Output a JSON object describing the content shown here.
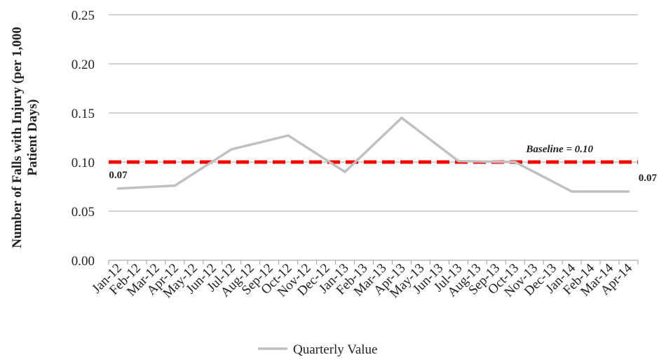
{
  "chart_data": {
    "type": "line",
    "title": "",
    "xlabel": "",
    "ylabel_lines": [
      "Number of Falls with Injury  (per 1,000",
      "Patient Days)"
    ],
    "ylim": [
      0,
      0.25
    ],
    "yticks": [
      "0.00",
      "0.05",
      "0.10",
      "0.15",
      "0.20",
      "0.25"
    ],
    "grid": "horizontal",
    "legend_position": "bottom-center",
    "categories": [
      "Jan-12",
      "Feb-12",
      "Mar-12",
      "Apr-12",
      "May-12",
      "Jun-12",
      "Jul-12",
      "Aug-12",
      "Sep-12",
      "Oct-12",
      "Nov-12",
      "Dec-12",
      "Jan-13",
      "Feb-13",
      "Mar-13",
      "Apr-13",
      "May-13",
      "Jun-13",
      "Jul-13",
      "Aug-13",
      "Sep-13",
      "Oct-13",
      "Nov-13",
      "Dec-13",
      "Jan-14",
      "Feb-14",
      "Mar-14",
      "Apr-14"
    ],
    "series": [
      {
        "name": "Quarterly Value",
        "color": "#c0c0c0",
        "points": [
          {
            "x": "Jan-12",
            "y": 0.073
          },
          {
            "x": "Apr-12",
            "y": 0.076
          },
          {
            "x": "Jul-12",
            "y": 0.113
          },
          {
            "x": "Oct-12",
            "y": 0.127
          },
          {
            "x": "Jan-13",
            "y": 0.09
          },
          {
            "x": "Apr-13",
            "y": 0.145
          },
          {
            "x": "Jul-13",
            "y": 0.101
          },
          {
            "x": "Oct-13",
            "y": 0.1
          },
          {
            "x": "Jan-14",
            "y": 0.07
          },
          {
            "x": "Apr-14",
            "y": 0.07
          }
        ]
      }
    ],
    "baseline": {
      "value": 0.1,
      "label": "Baseline = 0.10",
      "color": "#ff0000"
    },
    "annotations": [
      {
        "text": "0.07",
        "x": "Jan-12",
        "y": 0.073
      },
      {
        "text": "0.07",
        "x": "Apr-14",
        "y": 0.07
      }
    ]
  }
}
